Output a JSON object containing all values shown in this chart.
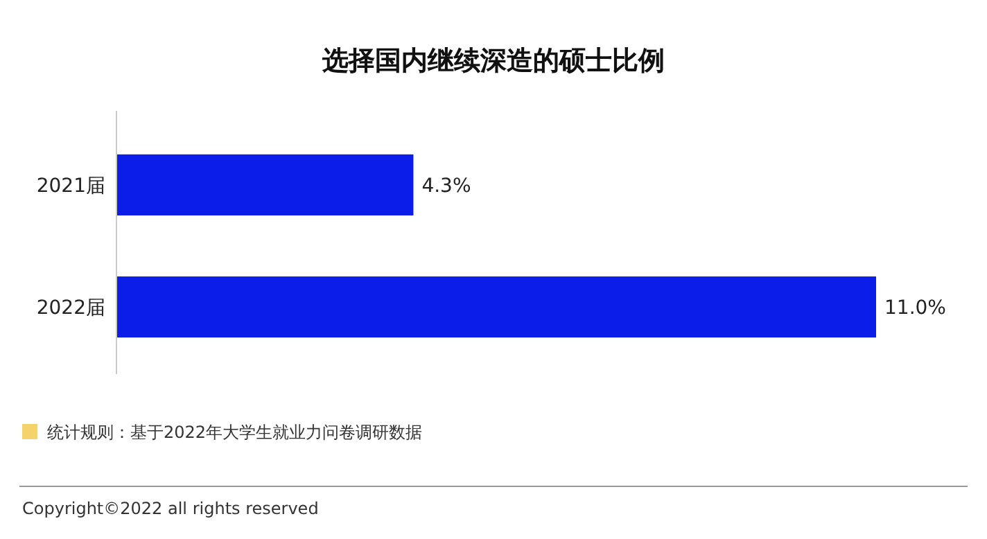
{
  "chart_data": {
    "type": "bar",
    "orientation": "horizontal",
    "title": "选择国内继续深造的硕士比例",
    "categories": [
      "2021届",
      "2022届"
    ],
    "values": [
      4.3,
      11.0
    ],
    "value_labels": [
      "4.3%",
      "11.0%"
    ],
    "color": "#0b1de8",
    "annotations": [
      "统计规则：基于2022年大学生就业力问卷调研数据",
      "Copyright©2022 all rights reserved"
    ]
  }
}
